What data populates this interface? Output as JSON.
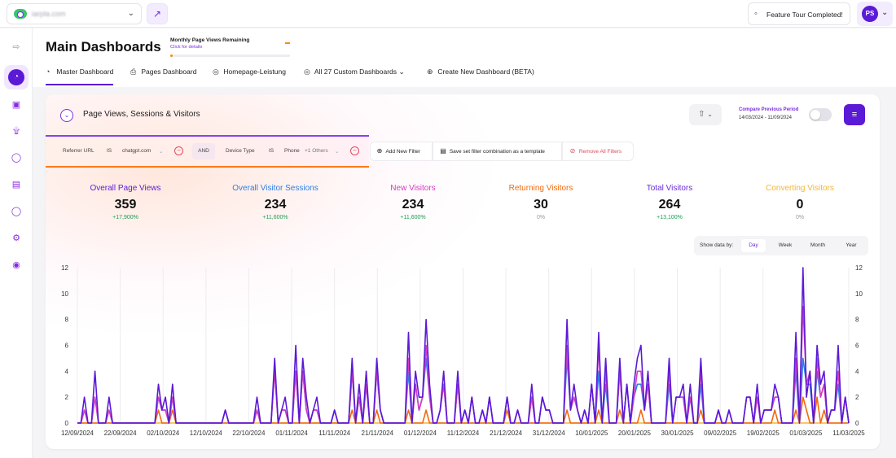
{
  "topbar": {
    "site_name": "iarpla.com",
    "tour_label": "Feature Tour Completed!",
    "user_initials": "PS"
  },
  "sidebar": {
    "items": [
      "collapse",
      "dashboard",
      "ecommerce",
      "realtime",
      "users",
      "sessions",
      "security",
      "settings",
      "profile"
    ]
  },
  "header": {
    "title": "Main Dashboards",
    "quota_title": "Monthly Page Views Remaining",
    "quota_link": "Click for details",
    "quota_remaining_fraction": 0.02,
    "tabs": [
      {
        "label": "Master Dashboard",
        "icon": "chart-icon",
        "active": true
      },
      {
        "label": "Pages Dashboard",
        "icon": "pages-icon",
        "active": false
      },
      {
        "label": "Homepage-Leistung",
        "icon": "globe-icon",
        "active": false
      },
      {
        "label": "All 27 Custom Dashboards",
        "icon": "globe-icon",
        "active": false
      },
      {
        "label": "Create New Dashboard (BETA)",
        "icon": "plus-circle-icon",
        "active": false
      }
    ]
  },
  "card": {
    "title": "Page Views, Sessions & Visitors",
    "compare_label": "Compare Previous Period",
    "compare_range": "14/03/2024 - 11/09/2024",
    "compare_enabled": false
  },
  "filters": {
    "f1_field": "Referrer URL",
    "f1_op": "IS",
    "f1_value": "chatgpt.com",
    "and_label": "AND",
    "f2_field": "Device Type",
    "f2_op": "IS",
    "f2_value": "Phone",
    "f2_more": "+1 Others",
    "add_label": "Add New Filter",
    "save_label": "Save set filter combination as a template",
    "remove_label": "Remove All Filters"
  },
  "metrics": [
    {
      "label": "Overall Page Views",
      "value": "359",
      "delta": "+17,900%",
      "color": "#5b1ad6",
      "delta_color": "#1a9c55"
    },
    {
      "label": "Overall Visitor Sessions",
      "value": "234",
      "delta": "+11,600%",
      "color": "#2b7fe6",
      "delta_color": "#1a9c55"
    },
    {
      "label": "New Visitors",
      "value": "234",
      "delta": "+11,600%",
      "color": "#d63cc2",
      "delta_color": "#1a9c55"
    },
    {
      "label": "Returning Visitors",
      "value": "30",
      "delta": "0%",
      "color": "#f06a10",
      "delta_color": "#9a9aa2"
    },
    {
      "label": "Total Visitors",
      "value": "264",
      "delta": "+13,100%",
      "color": "#6a2bd9",
      "delta_color": "#1a9c55"
    },
    {
      "label": "Converting Visitors",
      "value": "0",
      "delta": "0%",
      "color": "#f5b631",
      "delta_color": "#9a9aa2"
    }
  ],
  "show_by": {
    "label": "Show data by:",
    "options": [
      "Day",
      "Week",
      "Month",
      "Year"
    ],
    "active": "Day"
  },
  "chart_data": {
    "type": "line",
    "ylim": [
      0,
      12
    ],
    "yticks": [
      0,
      2,
      4,
      6,
      8,
      10,
      12
    ],
    "x_tick_labels": [
      "12/09/2024",
      "22/09/2024",
      "02/10/2024",
      "12/10/2024",
      "22/10/2024",
      "01/11/2024",
      "11/11/2024",
      "21/11/2024",
      "01/12/2024",
      "11/12/2024",
      "21/12/2024",
      "31/12/2024",
      "10/01/2025",
      "20/01/2025",
      "30/01/2025",
      "09/02/2025",
      "19/02/2025",
      "01/03/2025",
      "11/03/2025"
    ],
    "grid": true,
    "series": [
      {
        "color": "#5b1ad6",
        "values": [
          0,
          0,
          2,
          0,
          0,
          4,
          0,
          0,
          0,
          2,
          0,
          0,
          0,
          0,
          0,
          0,
          0,
          0,
          0,
          0,
          0,
          0,
          0,
          3,
          1,
          2,
          0,
          3,
          0,
          0,
          0,
          0,
          0,
          0,
          0,
          0,
          0,
          0,
          0,
          0,
          0,
          0,
          1,
          0,
          0,
          0,
          0,
          0,
          0,
          0,
          0,
          2,
          0,
          0,
          0,
          0,
          5,
          0,
          1,
          2,
          0,
          0,
          6,
          0,
          5,
          2,
          0,
          1,
          2,
          0,
          0,
          0,
          0,
          1,
          0,
          0,
          0,
          0,
          5,
          0,
          3,
          0,
          4,
          0,
          0,
          5,
          1,
          0,
          0,
          0,
          0,
          0,
          0,
          0,
          7,
          0,
          4,
          2,
          2,
          8,
          3,
          0,
          0,
          1,
          4,
          0,
          0,
          0,
          4,
          0,
          1,
          0,
          2,
          0,
          0,
          1,
          0,
          2,
          0,
          0,
          0,
          0,
          2,
          0,
          0,
          1,
          0,
          0,
          0,
          3,
          0,
          0,
          2,
          1,
          1,
          0,
          0,
          0,
          0,
          8,
          1,
          3,
          1,
          0,
          1,
          0,
          3,
          0,
          7,
          0,
          5,
          0,
          0,
          0,
          5,
          0,
          3,
          0,
          3,
          5,
          6,
          1,
          4,
          0,
          0,
          0,
          0,
          0,
          5,
          0,
          2,
          2,
          3,
          0,
          3,
          0,
          0,
          5,
          0,
          0,
          0,
          0,
          1,
          0,
          0,
          1,
          0,
          0,
          0,
          0,
          2,
          2,
          0,
          3,
          0,
          1,
          1,
          1,
          3,
          2,
          0,
          0,
          0,
          0,
          7,
          0,
          12,
          2,
          4,
          0,
          6,
          3,
          4,
          0,
          1,
          1,
          6,
          0,
          2,
          0
        ]
      },
      {
        "color": "#d63cc2",
        "values": [
          0,
          0,
          1,
          0,
          0,
          2,
          0,
          0,
          0,
          1,
          0,
          0,
          0,
          0,
          0,
          0,
          0,
          0,
          0,
          0,
          0,
          0,
          0,
          2,
          1,
          1,
          0,
          2,
          0,
          0,
          0,
          0,
          0,
          0,
          0,
          0,
          0,
          0,
          0,
          0,
          0,
          0,
          1,
          0,
          0,
          0,
          0,
          0,
          0,
          0,
          0,
          1,
          0,
          0,
          0,
          0,
          4,
          0,
          1,
          1,
          0,
          0,
          4,
          0,
          4,
          1,
          0,
          1,
          1,
          0,
          0,
          0,
          0,
          1,
          0,
          0,
          0,
          0,
          4,
          0,
          2,
          0,
          3,
          0,
          0,
          4,
          1,
          0,
          0,
          0,
          0,
          0,
          0,
          0,
          5,
          0,
          3,
          1,
          2,
          6,
          2,
          0,
          0,
          1,
          3,
          0,
          0,
          0,
          3,
          0,
          1,
          0,
          2,
          0,
          0,
          1,
          0,
          2,
          0,
          0,
          0,
          0,
          2,
          0,
          0,
          1,
          0,
          0,
          0,
          2,
          0,
          0,
          2,
          1,
          1,
          0,
          0,
          0,
          0,
          6,
          1,
          2,
          1,
          0,
          1,
          0,
          3,
          0,
          6,
          0,
          4,
          0,
          0,
          0,
          4,
          0,
          3,
          0,
          2,
          4,
          4,
          1,
          3,
          0,
          0,
          0,
          0,
          0,
          4,
          0,
          2,
          2,
          2,
          0,
          2,
          0,
          0,
          4,
          0,
          0,
          0,
          0,
          1,
          0,
          0,
          1,
          0,
          0,
          0,
          0,
          2,
          2,
          0,
          2,
          0,
          1,
          1,
          1,
          2,
          2,
          0,
          0,
          0,
          0,
          5,
          0,
          9,
          3,
          4,
          0,
          5,
          2,
          3,
          0,
          1,
          1,
          4,
          0,
          2,
          0
        ]
      },
      {
        "color": "#2b7fe6",
        "values": [
          0,
          0,
          1,
          0,
          0,
          2,
          0,
          0,
          0,
          1,
          0,
          0,
          0,
          0,
          0,
          0,
          0,
          0,
          0,
          0,
          0,
          0,
          0,
          2,
          1,
          1,
          0,
          2,
          0,
          0,
          0,
          0,
          0,
          0,
          0,
          0,
          0,
          0,
          0,
          0,
          0,
          0,
          1,
          0,
          0,
          0,
          0,
          0,
          0,
          0,
          0,
          1,
          0,
          0,
          0,
          0,
          4,
          0,
          1,
          1,
          0,
          0,
          4,
          0,
          4,
          1,
          0,
          1,
          1,
          0,
          0,
          0,
          0,
          1,
          0,
          0,
          0,
          0,
          4,
          0,
          2,
          0,
          3,
          0,
          0,
          4,
          1,
          0,
          0,
          0,
          0,
          0,
          0,
          0,
          4,
          0,
          3,
          1,
          2,
          5,
          2,
          0,
          0,
          1,
          3,
          0,
          0,
          0,
          3,
          0,
          1,
          0,
          2,
          0,
          0,
          1,
          0,
          2,
          0,
          0,
          0,
          0,
          2,
          0,
          0,
          1,
          0,
          0,
          0,
          2,
          0,
          0,
          2,
          1,
          1,
          0,
          0,
          0,
          0,
          5,
          1,
          2,
          1,
          0,
          1,
          0,
          3,
          0,
          4,
          0,
          3,
          0,
          0,
          0,
          4,
          0,
          3,
          0,
          2,
          3,
          3,
          1,
          3,
          0,
          0,
          0,
          0,
          0,
          3,
          0,
          2,
          2,
          2,
          0,
          2,
          0,
          0,
          3,
          0,
          0,
          0,
          0,
          1,
          0,
          0,
          1,
          0,
          0,
          0,
          0,
          2,
          2,
          0,
          2,
          0,
          1,
          1,
          1,
          2,
          2,
          0,
          0,
          0,
          0,
          4,
          0,
          5,
          3,
          3,
          0,
          4,
          2,
          3,
          0,
          1,
          1,
          3,
          0,
          2,
          0
        ]
      },
      {
        "color": "#f06a10",
        "values": [
          0,
          0,
          0,
          0,
          0,
          0,
          0,
          0,
          0,
          0,
          0,
          0,
          0,
          0,
          0,
          0,
          0,
          0,
          0,
          0,
          0,
          0,
          0,
          1,
          0,
          0,
          0,
          1,
          0,
          0,
          0,
          0,
          0,
          0,
          0,
          0,
          0,
          0,
          0,
          0,
          0,
          0,
          0,
          0,
          0,
          0,
          0,
          0,
          0,
          0,
          0,
          1,
          0,
          0,
          0,
          0,
          0,
          0,
          0,
          0,
          0,
          0,
          0,
          0,
          0,
          0,
          0,
          0,
          0,
          0,
          0,
          0,
          0,
          0,
          0,
          0,
          0,
          0,
          1,
          0,
          0,
          0,
          0,
          0,
          0,
          1,
          0,
          0,
          0,
          0,
          0,
          0,
          0,
          0,
          1,
          0,
          0,
          0,
          0,
          1,
          0,
          0,
          0,
          0,
          0,
          0,
          0,
          0,
          0,
          0,
          0,
          0,
          0,
          0,
          0,
          0,
          0,
          0,
          0,
          0,
          0,
          0,
          1,
          0,
          0,
          0,
          0,
          0,
          0,
          0,
          0,
          0,
          0,
          0,
          0,
          0,
          0,
          0,
          0,
          1,
          0,
          0,
          0,
          0,
          0,
          0,
          0,
          0,
          1,
          0,
          0,
          0,
          0,
          0,
          1,
          0,
          0,
          0,
          0,
          0,
          1,
          0,
          0,
          0,
          0,
          0,
          0,
          0,
          0,
          0,
          0,
          0,
          0,
          0,
          0,
          0,
          0,
          1,
          0,
          0,
          0,
          0,
          0,
          0,
          0,
          0,
          0,
          0,
          0,
          0,
          0,
          0,
          0,
          0,
          0,
          0,
          0,
          0,
          1,
          0,
          0,
          0,
          0,
          0,
          1,
          0,
          2,
          1,
          0,
          0,
          2,
          0,
          1,
          0,
          0,
          0,
          0,
          0,
          0,
          0
        ]
      },
      {
        "color": "#f5b631",
        "values": [
          0,
          0,
          0,
          0,
          0,
          0,
          0,
          0,
          0,
          0,
          0,
          0,
          0,
          0,
          0,
          0,
          0,
          0,
          0,
          0,
          0,
          0,
          0,
          0,
          0,
          0,
          0,
          0,
          0,
          0,
          0,
          0,
          0,
          0,
          0,
          0,
          0,
          0,
          0,
          0,
          0,
          0,
          0,
          0,
          0,
          0,
          0,
          0,
          0,
          0,
          0,
          0,
          0,
          0,
          0,
          0,
          0,
          0,
          0,
          0,
          0,
          0,
          0,
          0,
          0,
          0,
          0,
          0,
          0,
          0,
          0,
          0,
          0,
          0,
          0,
          0,
          0,
          0,
          0,
          0,
          0,
          0,
          0,
          0,
          0,
          0,
          0,
          0,
          0,
          0,
          0,
          0,
          0,
          0,
          0,
          0,
          0,
          0,
          0,
          0,
          0,
          0,
          0,
          0,
          0,
          0,
          0,
          0,
          0,
          0,
          0,
          0,
          0,
          0,
          0,
          0,
          0,
          0,
          0,
          0,
          0,
          0,
          0,
          0,
          0,
          0,
          0,
          0,
          0,
          0,
          0,
          0,
          0,
          0,
          0,
          0,
          0,
          0,
          0,
          0,
          0,
          0,
          0,
          0,
          0,
          0,
          0,
          0,
          0,
          0,
          0,
          0,
          0,
          0,
          0,
          0,
          0,
          0,
          0,
          0,
          0,
          0,
          0,
          0,
          0,
          0,
          0,
          0,
          0,
          0,
          0,
          0,
          0,
          0,
          0,
          0,
          0,
          0,
          0,
          0,
          0,
          0,
          0,
          0,
          0,
          0,
          0,
          0,
          0,
          0,
          0,
          0,
          0,
          0,
          0,
          0,
          0,
          0,
          0,
          0,
          0,
          0,
          0,
          0,
          0,
          0,
          0,
          0,
          0,
          0,
          0,
          0,
          0,
          0,
          0,
          0,
          0,
          0,
          0,
          0
        ]
      }
    ]
  }
}
